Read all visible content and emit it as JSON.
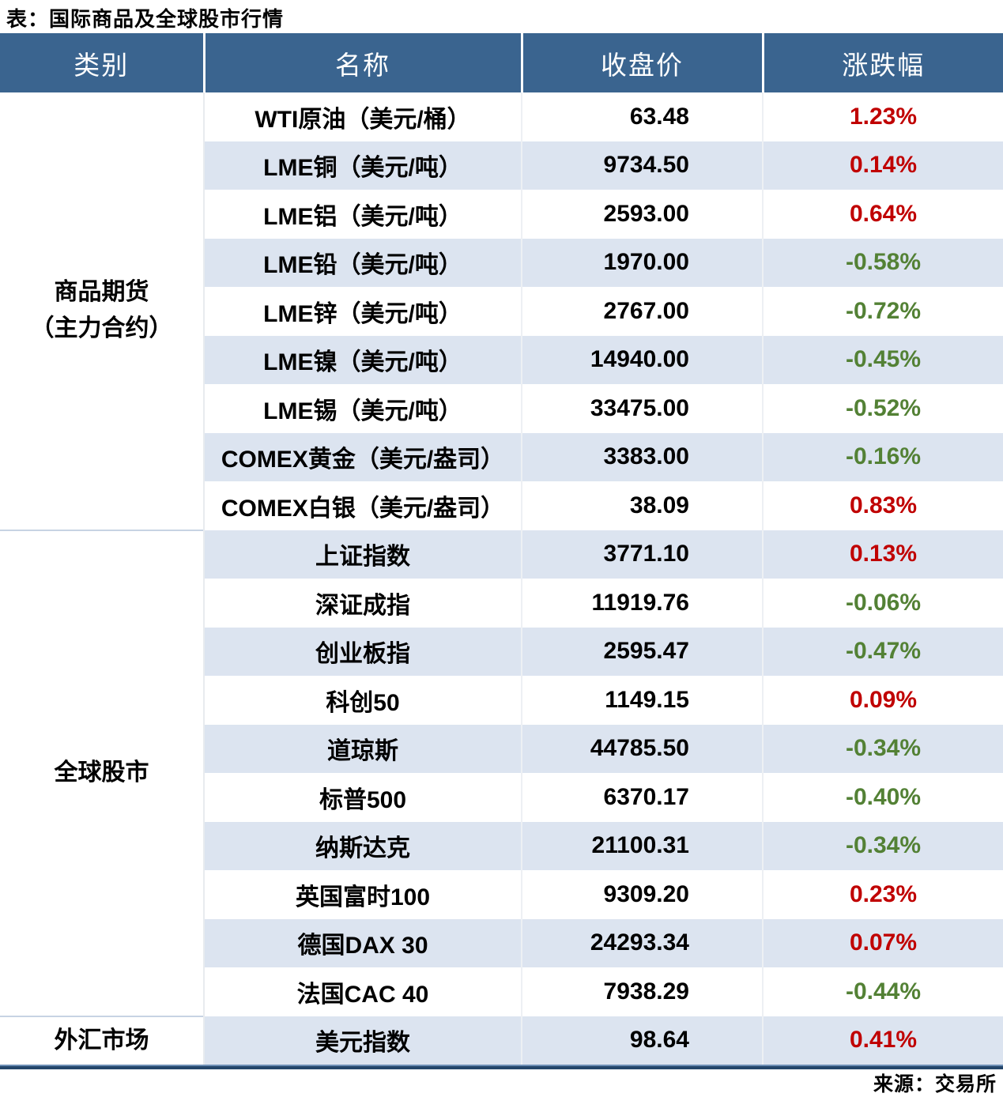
{
  "title": "表：国际商品及全球股市行情",
  "source": "来源：交易所",
  "table": {
    "headers": [
      "类别",
      "名称",
      "收盘价",
      "涨跌幅"
    ],
    "colors": {
      "header_bg": "#3A648F",
      "header_text": "#FFFFFF",
      "row_bg": "#FFFFFF",
      "row_alt_bg": "#DCE4F0",
      "up": "#C00000",
      "down": "#538135",
      "bottom_border": "#24466B"
    },
    "sections": [
      {
        "category_lines": [
          "商品期货",
          "（主力合约）"
        ],
        "rows": [
          {
            "name": "WTI原油（美元/桶）",
            "close": "63.48",
            "change": "1.23%"
          },
          {
            "name": "LME铜（美元/吨）",
            "close": "9734.50",
            "change": "0.14%"
          },
          {
            "name": "LME铝（美元/吨）",
            "close": "2593.00",
            "change": "0.64%"
          },
          {
            "name": "LME铅（美元/吨）",
            "close": "1970.00",
            "change": "-0.58%"
          },
          {
            "name": "LME锌（美元/吨）",
            "close": "2767.00",
            "change": "-0.72%"
          },
          {
            "name": "LME镍（美元/吨）",
            "close": "14940.00",
            "change": "-0.45%"
          },
          {
            "name": "LME锡（美元/吨）",
            "close": "33475.00",
            "change": "-0.52%"
          },
          {
            "name": "COMEX黄金（美元/盎司）",
            "close": "3383.00",
            "change": "-0.16%"
          },
          {
            "name": "COMEX白银（美元/盎司）",
            "close": "38.09",
            "change": "0.83%"
          }
        ]
      },
      {
        "category_lines": [
          "全球股市"
        ],
        "rows": [
          {
            "name": "上证指数",
            "close": "3771.10",
            "change": "0.13%"
          },
          {
            "name": "深证成指",
            "close": "11919.76",
            "change": "-0.06%"
          },
          {
            "name": "创业板指",
            "close": "2595.47",
            "change": "-0.47%"
          },
          {
            "name": "科创50",
            "close": "1149.15",
            "change": "0.09%"
          },
          {
            "name": "道琼斯",
            "close": "44785.50",
            "change": "-0.34%"
          },
          {
            "name": "标普500",
            "close": "6370.17",
            "change": "-0.40%"
          },
          {
            "name": "纳斯达克",
            "close": "21100.31",
            "change": "-0.34%"
          },
          {
            "name": "英国富时100",
            "close": "9309.20",
            "change": "0.23%"
          },
          {
            "name": "德国DAX 30",
            "close": "24293.34",
            "change": "0.07%"
          },
          {
            "name": "法国CAC 40",
            "close": "7938.29",
            "change": "-0.44%"
          }
        ]
      },
      {
        "category_lines": [
          "外汇市场"
        ],
        "rows": [
          {
            "name": "美元指数",
            "close": "98.64",
            "change": "0.41%"
          }
        ]
      }
    ]
  }
}
